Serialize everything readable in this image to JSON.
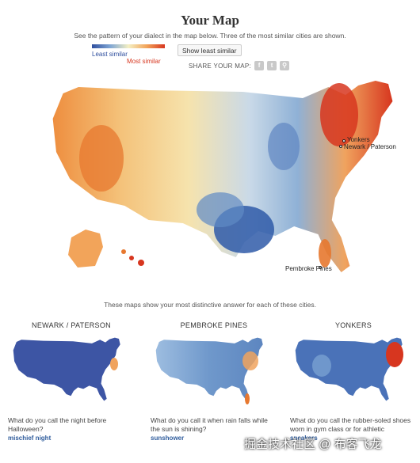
{
  "header": {
    "title": "Your Map",
    "subtitle": "See the pattern of your dialect in the map below. Three of the most similar cities are shown."
  },
  "legend": {
    "least_label": "Least similar",
    "most_label": "Most similar",
    "colors": [
      "#2f4f9e",
      "#7fa6d4",
      "#f4f0c4",
      "#f2a45a",
      "#d7361f"
    ]
  },
  "toggle": {
    "label": "Show least similar"
  },
  "share": {
    "label": "SHARE YOUR MAP:",
    "icons": [
      "facebook-icon",
      "twitter-icon",
      "link-icon"
    ]
  },
  "main_map": {
    "cities": [
      {
        "name": "Yonkers"
      },
      {
        "name": "Newark / Paterson"
      },
      {
        "name": "Pembroke Pines"
      }
    ]
  },
  "caption": "These maps show your most distinctive answer for each of these cities.",
  "city_panels": [
    {
      "city": "NEWARK / PATERSON",
      "question": "What do you call the night before Halloween?",
      "answer": "mischief night"
    },
    {
      "city": "PEMBROKE PINES",
      "question": "What do you call it when rain falls while the sun is shining?",
      "answer": "sunshower"
    },
    {
      "city": "YONKERS",
      "question": "What do you call the rubber-soled shoes worn in gym class or for athletic",
      "answer": "sneakers"
    }
  ],
  "watermark": "掘金技术社区 @ 布客飞龙"
}
